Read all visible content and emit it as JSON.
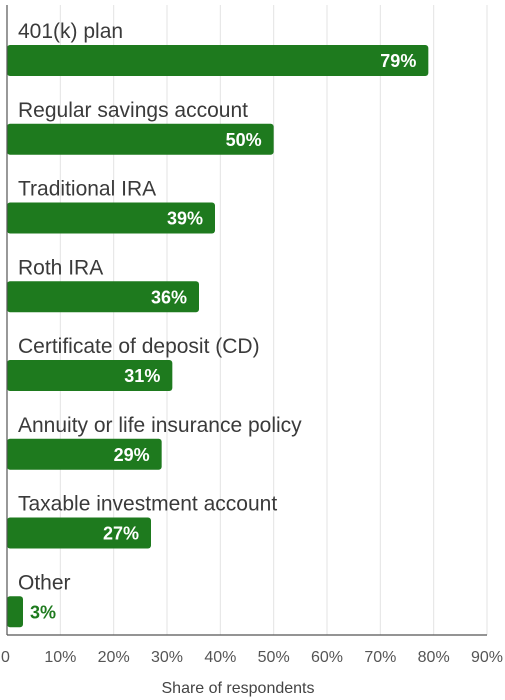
{
  "chart_data": {
    "type": "bar",
    "orientation": "horizontal",
    "categories": [
      "401(k) plan",
      "Regular savings account",
      "Traditional IRA",
      "Roth IRA",
      "Certificate of deposit (CD)",
      "Annuity or life insurance policy",
      "Taxable investment account",
      "Other"
    ],
    "values": [
      79,
      50,
      39,
      36,
      31,
      29,
      27,
      3
    ],
    "value_labels": [
      "79%",
      "50%",
      "39%",
      "36%",
      "31%",
      "29%",
      "27%",
      "3%"
    ],
    "xlabel": "Share of respondents",
    "xlim": [
      0,
      90
    ],
    "xticks": [
      "0",
      "10%",
      "20%",
      "30%",
      "40%",
      "50%",
      "60%",
      "70%",
      "80%",
      "90%"
    ],
    "grid": true,
    "colors": {
      "bar": "#1e7a1e"
    }
  }
}
